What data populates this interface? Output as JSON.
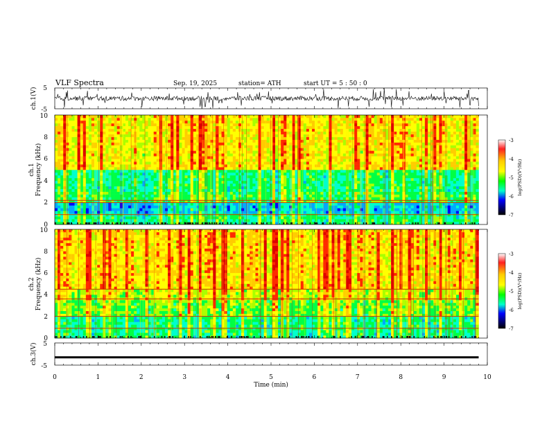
{
  "header": {
    "title": "VLF  Spectra",
    "date": "Sep. 19, 2025",
    "station": "station= ATH",
    "start_ut": "start  UT  =    5  : 50 : 0"
  },
  "chart_data": [
    {
      "type": "line",
      "name": "ch1-waveform",
      "ylabel": "ch.1(V)",
      "ylim": [
        -5,
        5
      ],
      "ytick_labels": [
        "5",
        "-5"
      ],
      "xlim": [
        0,
        10
      ],
      "data_end_min": 9.8,
      "baseline_v": 0,
      "description_values": {
        "typical_range_v": [
          -2,
          2
        ],
        "spike_max_v": 5
      }
    },
    {
      "type": "heatmap",
      "name": "ch1-spectrogram",
      "ylabel": "ch.1\nFrequency (kHz)",
      "ylim": [
        0,
        10
      ],
      "ytick_labels": [
        "0",
        "2",
        "4",
        "6",
        "8",
        "10"
      ],
      "xlim": [
        0,
        10
      ],
      "data_end_min": 9.8,
      "bands": [
        {
          "f_low_khz": 0,
          "f_high_khz": 1,
          "log_psd": -5.2
        },
        {
          "f_low_khz": 1,
          "f_high_khz": 2,
          "log_psd": -5.7
        },
        {
          "f_low_khz": 2,
          "f_high_khz": 3,
          "log_psd": -5.0
        },
        {
          "f_low_khz": 3,
          "f_high_khz": 5,
          "log_psd": -5.2
        },
        {
          "f_low_khz": 5,
          "f_high_khz": 10,
          "log_psd": -4.3
        }
      ],
      "tone_lines_khz": [
        0.9,
        2.0,
        2.2
      ],
      "colorbar": {
        "label": "log(PSD)(V²/Hz)",
        "range": [
          -7,
          -3
        ],
        "tick_labels": [
          "-3",
          "-4",
          "-5",
          "-6",
          "-7"
        ]
      }
    },
    {
      "type": "heatmap",
      "name": "ch2-spectrogram",
      "ylabel": "ch.2\nFrequency (kHz)",
      "ylim": [
        0,
        10
      ],
      "ytick_labels": [
        "0",
        "2",
        "4",
        "6",
        "8",
        "10"
      ],
      "xlim": [
        0,
        10
      ],
      "data_end_min": 9.8,
      "bands": [
        {
          "f_low_khz": 0,
          "f_high_khz": 2,
          "log_psd": -5.2
        },
        {
          "f_low_khz": 2,
          "f_high_khz": 3.5,
          "log_psd": -4.8
        },
        {
          "f_low_khz": 3.5,
          "f_high_khz": 4.5,
          "log_psd": -4.5
        },
        {
          "f_low_khz": 4.5,
          "f_high_khz": 10,
          "log_psd": -4.2
        }
      ],
      "tone_lines_khz": [
        0.9,
        2.0,
        3.6,
        4.5
      ],
      "colorbar": {
        "label": "log(PSD)(V²/Hz)",
        "range": [
          -7,
          -3
        ],
        "tick_labels": [
          "-3",
          "-4",
          "-5",
          "-6",
          "-7"
        ]
      }
    },
    {
      "type": "line",
      "name": "ch3-waveform",
      "ylabel": "ch.3(V)",
      "ylim": [
        -5,
        5
      ],
      "ytick_labels": [
        "5",
        "-5"
      ],
      "xlim": [
        0,
        10
      ],
      "data_end_min": 9.8,
      "baseline_v": -1.5
    }
  ],
  "x_axis": {
    "label": "Time  (min)",
    "range": [
      0,
      10
    ],
    "tick_labels": [
      "0",
      "1",
      "2",
      "3",
      "4",
      "5",
      "6",
      "7",
      "8",
      "9",
      "10"
    ]
  }
}
